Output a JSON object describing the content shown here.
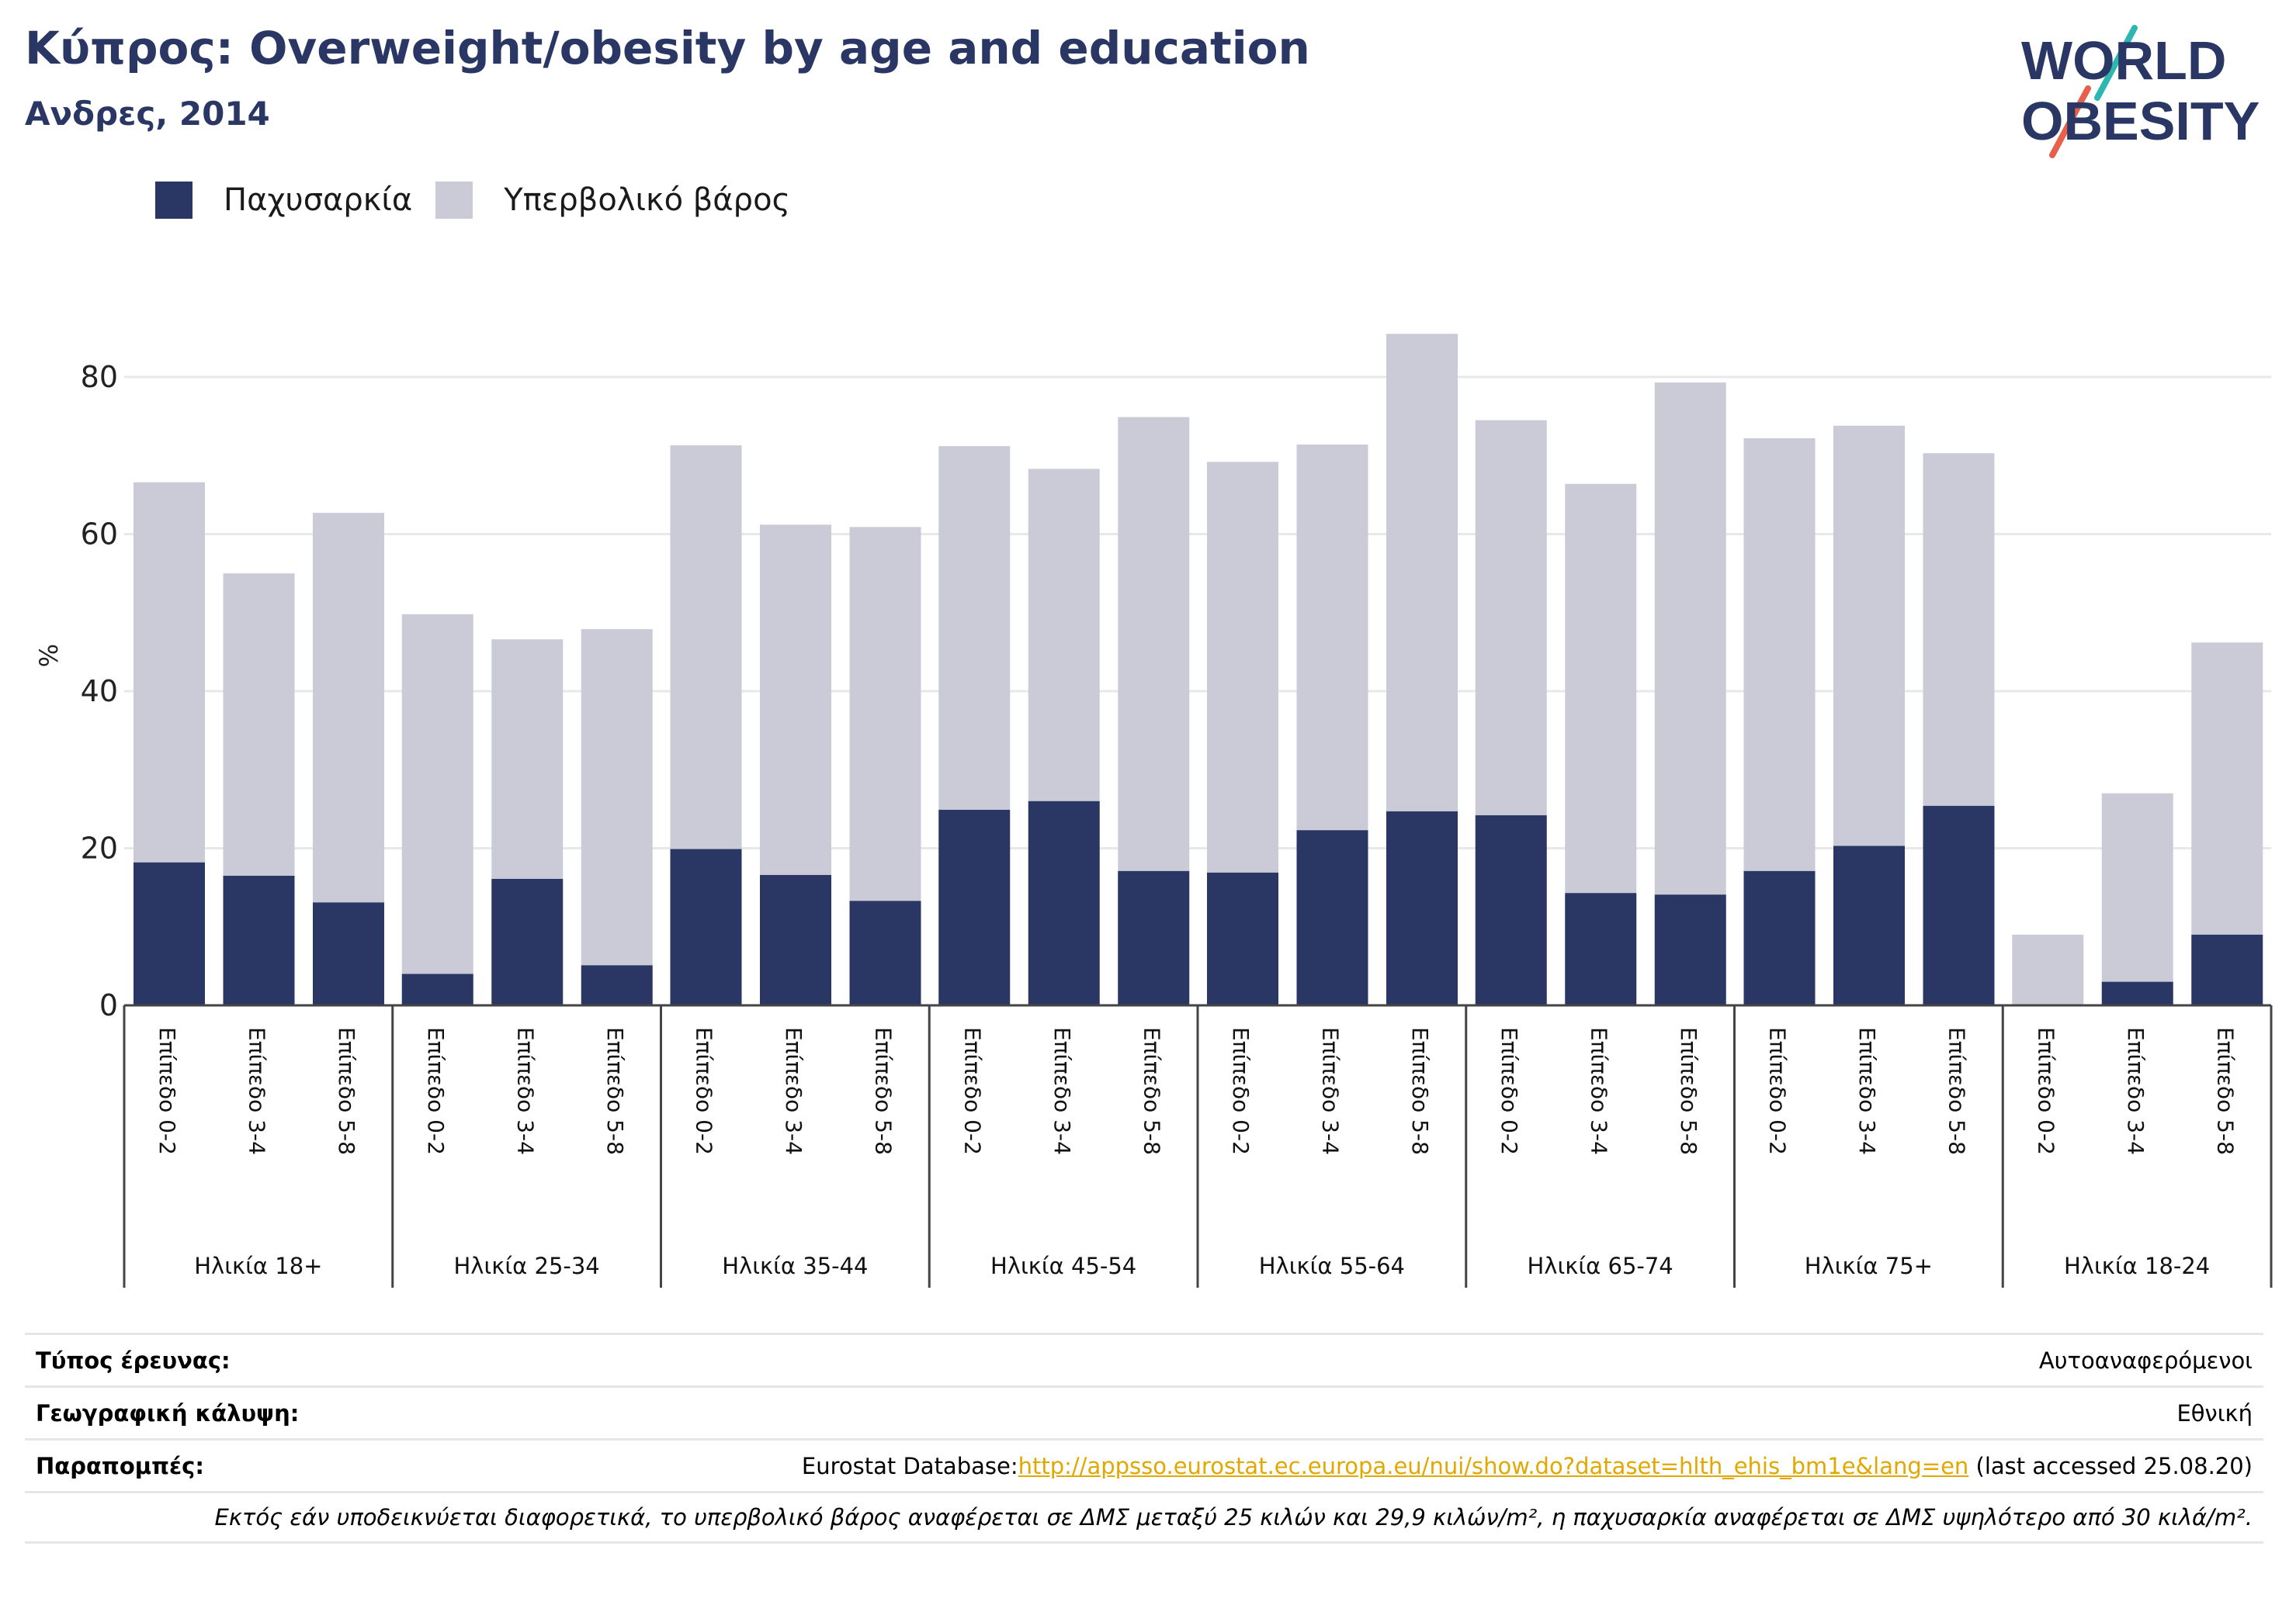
{
  "title": "Κύπρος: Overweight/obesity by age and education",
  "subtitle": "Ανδρες, 2014",
  "logo": {
    "line1": "WORLD",
    "line2": "OBESITY",
    "slash_colors": [
      "#2cb8b0",
      "#e6604b"
    ]
  },
  "colors": {
    "obesity": "#2a3663",
    "overweight": "#cacbd7",
    "title": "#2a3663",
    "link": "#e0a800"
  },
  "chart_data": {
    "type": "bar",
    "stacked": true,
    "ylabel": "%",
    "ylim": [
      0,
      90
    ],
    "yticks": [
      0,
      20,
      40,
      60,
      80
    ],
    "grid": true,
    "legend_position": "top-left",
    "groups": [
      {
        "label": "Ηλικία 18+",
        "categories": [
          "Επίπεδο 0-2",
          "Επίπεδο 3-4",
          "Επίπεδο 5-8"
        ]
      },
      {
        "label": "Ηλικία 25-34",
        "categories": [
          "Επίπεδο 0-2",
          "Επίπεδο 3-4",
          "Επίπεδο 5-8"
        ]
      },
      {
        "label": "Ηλικία 35-44",
        "categories": [
          "Επίπεδο 0-2",
          "Επίπεδο 3-4",
          "Επίπεδο 5-8"
        ]
      },
      {
        "label": "Ηλικία 45-54",
        "categories": [
          "Επίπεδο 0-2",
          "Επίπεδο 3-4",
          "Επίπεδο 5-8"
        ]
      },
      {
        "label": "Ηλικία 55-64",
        "categories": [
          "Επίπεδο 0-2",
          "Επίπεδο 3-4",
          "Επίπεδο 5-8"
        ]
      },
      {
        "label": "Ηλικία 65-74",
        "categories": [
          "Επίπεδο 0-2",
          "Επίπεδο 3-4",
          "Επίπεδο 5-8"
        ]
      },
      {
        "label": "Ηλικία 75+",
        "categories": [
          "Επίπεδο 0-2",
          "Επίπεδο 3-4",
          "Επίπεδο 5-8"
        ]
      },
      {
        "label": "Ηλικία 18-24",
        "categories": [
          "Επίπεδο 0-2",
          "Επίπεδο 3-4",
          "Επίπεδο 5-8"
        ]
      }
    ],
    "series": [
      {
        "name": "Παχυσαρκία",
        "color": "#2a3663",
        "values": [
          18.2,
          16.5,
          13.1,
          4.0,
          16.1,
          5.1,
          19.9,
          16.6,
          13.3,
          24.9,
          26.0,
          17.1,
          16.9,
          22.3,
          24.7,
          24.2,
          14.3,
          14.1,
          17.1,
          20.3,
          25.4,
          0.0,
          3.0,
          9.0
        ]
      },
      {
        "name": "Υπερβολικό βάρος",
        "color": "#cacbd7",
        "values": [
          48.4,
          38.5,
          49.6,
          45.8,
          30.5,
          42.8,
          51.4,
          44.6,
          47.6,
          46.3,
          42.3,
          57.8,
          52.3,
          49.1,
          60.8,
          50.3,
          52.1,
          65.2,
          55.1,
          53.5,
          44.9,
          9.0,
          24.0,
          37.2
        ]
      }
    ]
  },
  "info": {
    "survey_type": {
      "label": "Τύπος έρευνας:",
      "value": "Αυτοαναφερόμενοι"
    },
    "coverage": {
      "label": "Γεωγραφική κάλυψη:",
      "value": "Εθνική"
    },
    "references": {
      "label": "Παραπομπές:",
      "prefix": "Eurostat Database:",
      "link": "http://appsso.eurostat.ec.europa.eu/nui/show.do?dataset=hlth_ehis_bm1e&lang=en",
      "suffix": " (last accessed 25.08.20)"
    },
    "note": "Εκτός εάν υποδεικνύεται διαφορετικά, το υπερβολικό βάρος αναφέρεται σε ΔΜΣ μεταξύ 25 κιλών και 29,9 κιλών/m², η παχυσαρκία αναφέρεται σε ΔΜΣ υψηλότερο από 30 κιλά/m²."
  }
}
